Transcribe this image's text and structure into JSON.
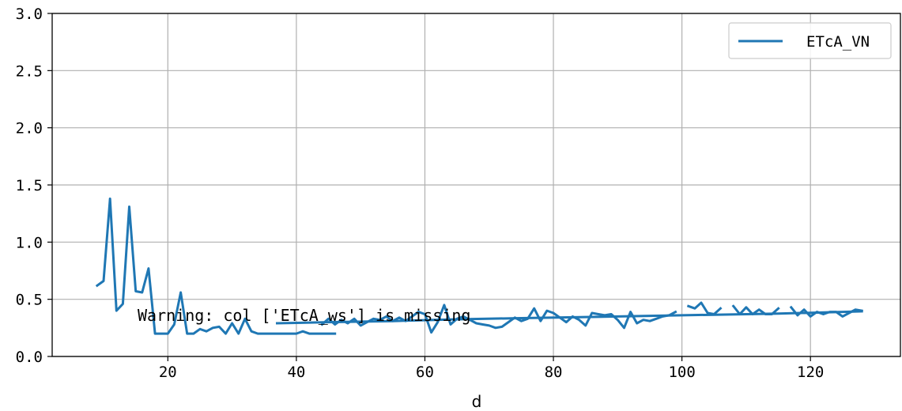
{
  "chart_data": {
    "type": "line",
    "xlabel": "d",
    "ylabel": "",
    "xlim": [
      2,
      134
    ],
    "ylim": [
      0.0,
      3.0
    ],
    "xticks": [
      20,
      40,
      60,
      80,
      100,
      120
    ],
    "yticks": [
      0.0,
      0.5,
      1.0,
      1.5,
      2.0,
      2.5,
      3.0
    ],
    "ytick_labels": [
      "0.0",
      "0.5",
      "1.0",
      "1.5",
      "2.0",
      "2.5",
      "3.0"
    ],
    "xtick_labels": [
      "20",
      "40",
      "60",
      "80",
      "100",
      "120"
    ],
    "grid": true,
    "legend_position": "top-right",
    "color": "#1f77b4",
    "annotation": "Warning: col ['ETcA_ws'] is missing",
    "series": [
      {
        "name": "ETcA_VN",
        "segments": [
          {
            "x": [
              9,
              10,
              11,
              12,
              13,
              14,
              15,
              16,
              17,
              18,
              19,
              20,
              21,
              22,
              23,
              24,
              25,
              26,
              27,
              28,
              29,
              30,
              31,
              32,
              33,
              34,
              35,
              36,
              37,
              38,
              39,
              40,
              41,
              42,
              43,
              44,
              45,
              46
            ],
            "y": [
              0.62,
              0.66,
              1.38,
              0.4,
              0.46,
              1.31,
              0.57,
              0.56,
              0.77,
              0.2,
              0.2,
              0.2,
              0.28,
              0.56,
              0.2,
              0.2,
              0.24,
              0.22,
              0.25,
              0.26,
              0.2,
              0.29,
              0.2,
              0.33,
              0.22,
              0.2,
              0.2,
              0.2,
              0.2,
              0.2,
              0.2,
              0.2,
              0.22,
              0.2,
              0.2,
              0.2,
              0.2,
              0.2
            ]
          },
          {
            "x": [
              37,
              45,
              55,
              65,
              75,
              85,
              95,
              105,
              115,
              125,
              128
            ],
            "y": [
              0.29,
              0.3,
              0.31,
              0.325,
              0.335,
              0.345,
              0.355,
              0.365,
              0.375,
              0.39,
              0.395
            ]
          },
          {
            "x": [
              44,
              45,
              46,
              47,
              48,
              49,
              50,
              51,
              52,
              53,
              54,
              55,
              56,
              57,
              58,
              59,
              60,
              61,
              62,
              63,
              64,
              65,
              66,
              67,
              68,
              69,
              70,
              71,
              72,
              73,
              74,
              75,
              76,
              77,
              78,
              79,
              80,
              81,
              82,
              83,
              84,
              85,
              86,
              87,
              88,
              89,
              90,
              91,
              92,
              93,
              94,
              95,
              96,
              97,
              98,
              99
            ],
            "y": [
              0.28,
              0.33,
              0.28,
              0.32,
              0.29,
              0.33,
              0.27,
              0.3,
              0.33,
              0.32,
              0.35,
              0.31,
              0.34,
              0.31,
              0.35,
              0.39,
              0.37,
              0.21,
              0.3,
              0.45,
              0.28,
              0.33,
              0.35,
              0.32,
              0.29,
              0.28,
              0.27,
              0.25,
              0.26,
              0.3,
              0.34,
              0.31,
              0.33,
              0.42,
              0.31,
              0.4,
              0.38,
              0.34,
              0.3,
              0.35,
              0.32,
              0.27,
              0.38,
              0.37,
              0.36,
              0.37,
              0.32,
              0.25,
              0.39,
              0.29,
              0.32,
              0.31,
              0.33,
              0.35,
              0.36,
              0.39
            ]
          },
          {
            "x": [
              101,
              102,
              103,
              104,
              105,
              106
            ],
            "y": [
              0.44,
              0.42,
              0.47,
              0.38,
              0.37,
              0.42
            ]
          },
          {
            "x": [
              108,
              109,
              110,
              111,
              112,
              113,
              114,
              115
            ],
            "y": [
              0.44,
              0.37,
              0.43,
              0.37,
              0.41,
              0.37,
              0.37,
              0.42
            ]
          },
          {
            "x": [
              117,
              118,
              119,
              120,
              121,
              122,
              123,
              124,
              125,
              126,
              127,
              128
            ],
            "y": [
              0.43,
              0.36,
              0.41,
              0.35,
              0.39,
              0.37,
              0.39,
              0.39,
              0.35,
              0.38,
              0.41,
              0.4
            ]
          }
        ]
      }
    ]
  }
}
